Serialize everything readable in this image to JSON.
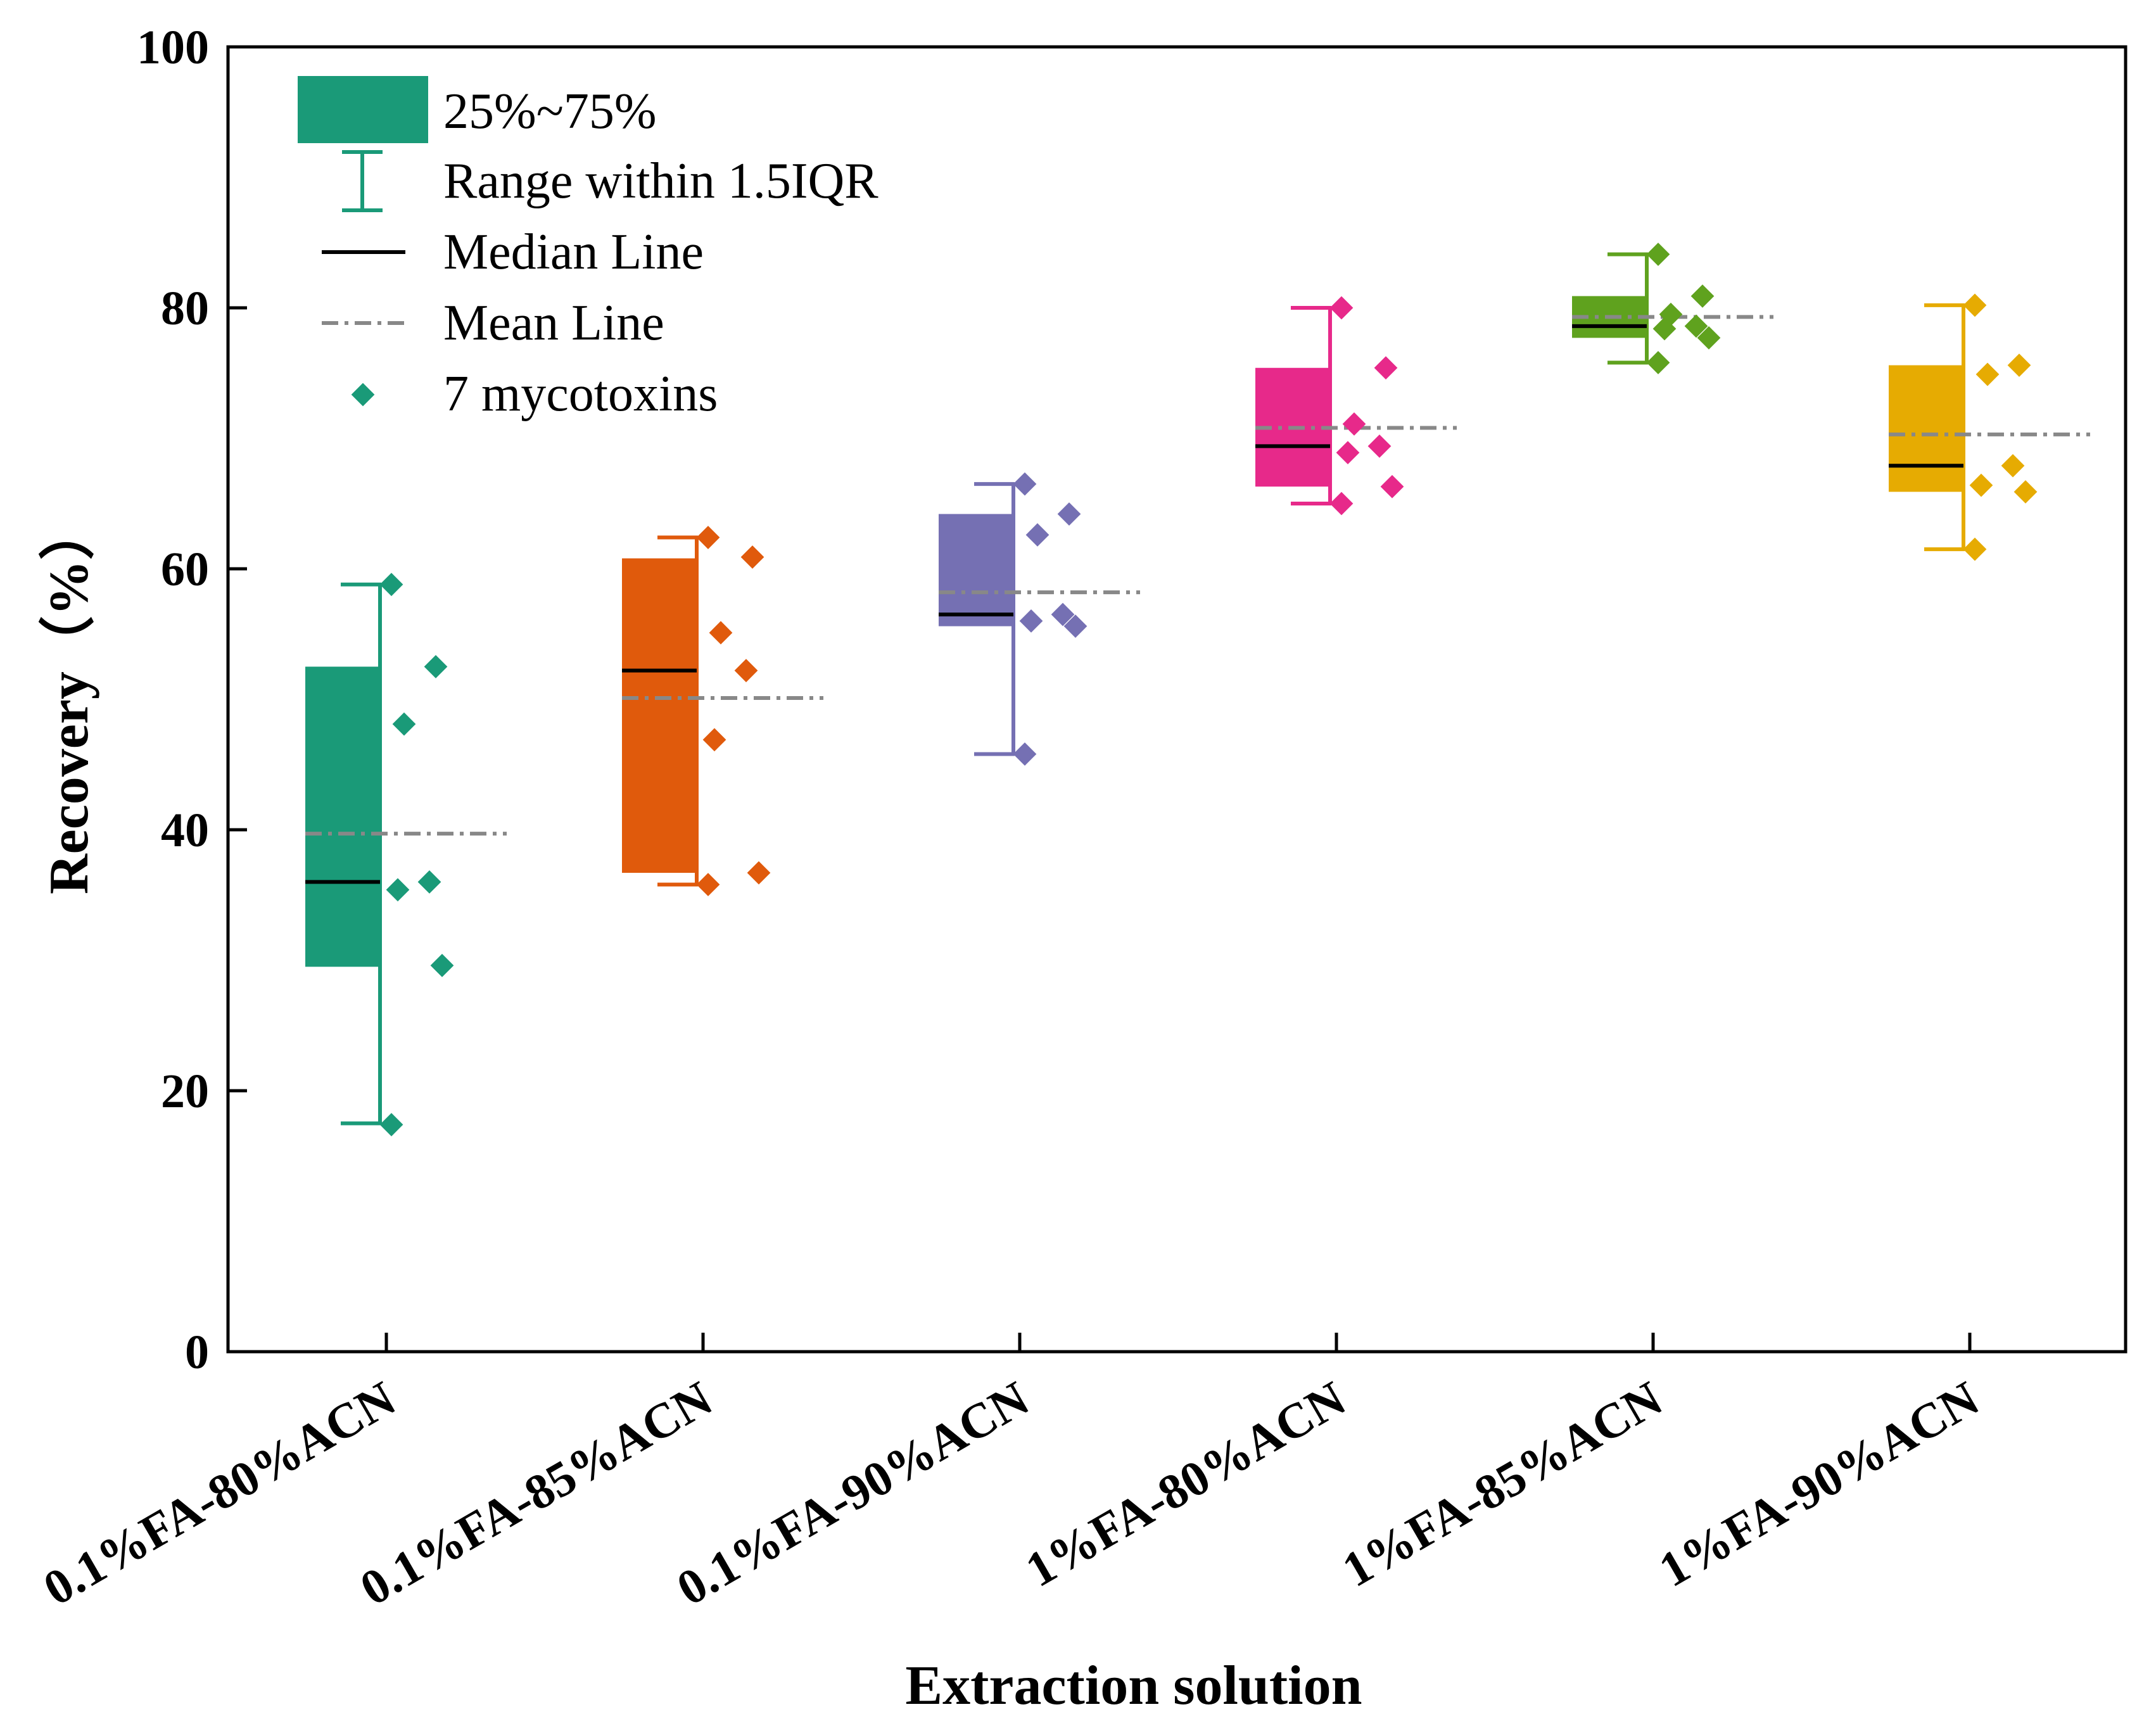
{
  "chart_data": {
    "type": "box",
    "title": "",
    "xlabel": "Extraction solution",
    "ylabel": "Recovery（%）",
    "ylim": [
      0,
      100
    ],
    "yticks": [
      0,
      20,
      40,
      60,
      80,
      100
    ],
    "categories": [
      "0.1%FA-80%ACN",
      "0.1%FA-85%ACN",
      "0.1%FA-90%ACN",
      "1%FA-80%ACN",
      "1%FA-85%ACN",
      "1%FA-90%ACN"
    ],
    "colors": [
      "#1a9a78",
      "#e05a0c",
      "#7570b3",
      "#e7298a",
      "#5fa21e",
      "#e6ab02"
    ],
    "boxes": [
      {
        "q1": 29.5,
        "q3": 52.5,
        "median": 36.0,
        "mean": 39.7,
        "whisker_low": 17.5,
        "whisker_high": 58.8
      },
      {
        "q1": 36.7,
        "q3": 60.8,
        "median": 52.2,
        "mean": 50.1,
        "whisker_low": 35.8,
        "whisker_high": 62.4
      },
      {
        "q1": 55.6,
        "q3": 64.2,
        "median": 56.5,
        "mean": 58.2,
        "whisker_low": 45.8,
        "whisker_high": 66.5
      },
      {
        "q1": 66.3,
        "q3": 75.4,
        "median": 69.4,
        "mean": 70.8,
        "whisker_low": 65.0,
        "whisker_high": 80.0
      },
      {
        "q1": 77.7,
        "q3": 80.9,
        "median": 78.6,
        "mean": 79.3,
        "whisker_low": 75.8,
        "whisker_high": 84.1
      },
      {
        "q1": 65.9,
        "q3": 75.6,
        "median": 67.9,
        "mean": 70.3,
        "whisker_low": 61.5,
        "whisker_high": 80.2
      }
    ],
    "points": [
      [
        58.8,
        52.5,
        48.1,
        36.0,
        35.4,
        29.6,
        17.4
      ],
      [
        62.4,
        60.9,
        55.1,
        52.2,
        46.9,
        36.7,
        35.8
      ],
      [
        66.5,
        64.2,
        62.6,
        56.5,
        56.0,
        55.6,
        45.8
      ],
      [
        80.0,
        75.4,
        71.1,
        69.4,
        68.9,
        66.3,
        65.0
      ],
      [
        84.1,
        80.9,
        79.5,
        78.6,
        78.4,
        77.7,
        75.8
      ],
      [
        80.2,
        75.6,
        74.9,
        67.9,
        66.4,
        65.9,
        61.5
      ]
    ],
    "legend": {
      "position": "top-left",
      "entries": [
        "25%~75%",
        "Range within 1.5IQR",
        "Median Line",
        "Mean Line",
        "7 mycotoxins"
      ]
    }
  }
}
